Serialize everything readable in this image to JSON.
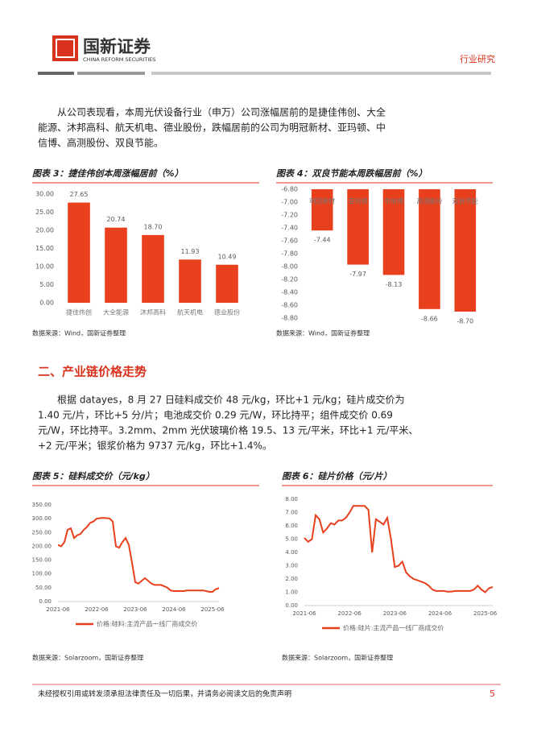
{
  "header": {
    "logo_text": "国新证券",
    "logo_subtext": "CHINA REFORM SECURITIES",
    "report_type": "行业研究"
  },
  "paragraphs": [
    [
      "从公司表现看，本周光伏设备行业（申万）公司涨幅居前的是捷佳伟创、大全",
      "能源、沐邦高科、航天机电、德业股份，跌幅居前的公司为明冠新材、亚玛顿、中",
      "信博、高测股份、双良节能。"
    ],
    [
      "根据 datayes，8 月 27 日硅料成交价 48 元/kg，环比+1 元/kg；硅片成交价为",
      "1.40 元/片，环比+5 分/片；电池成交价 0.29 元/W，环比持平；组件成交价 0.69",
      "元/W，环比持平。3.2mm、2mm 光伏玻璃价格 19.5、13 元/平米，环比+1 元/平米、",
      "+2 元/平米；银浆价格为 9737 元/kg，环比+1.4%。"
    ]
  ],
  "section_heading": "二、产业链价格走势",
  "chart_data": [
    {
      "type": "bar",
      "title": "图表 3：捷佳伟创本周涨幅居前（%）",
      "source": "数据来源：Wind，国新证券整理",
      "categories": [
        "捷佳伟创",
        "大全能源",
        "沐邦高科",
        "航天机电",
        "德业股份"
      ],
      "values": [
        27.65,
        20.74,
        18.7,
        11.93,
        10.49
      ],
      "value_labels": [
        "27.65",
        "20.74",
        "18.70",
        "11.93",
        "10.49"
      ],
      "color": "#e8401c",
      "ylim": [
        0,
        30
      ],
      "yticks": [
        {
          "value": 0,
          "label": "0.00"
        },
        {
          "value": 5,
          "label": "5.00"
        },
        {
          "value": 10,
          "label": "10.00"
        },
        {
          "value": 15,
          "label": "15.00"
        },
        {
          "value": 20,
          "label": "20.00"
        },
        {
          "value": 25,
          "label": "25.00"
        },
        {
          "value": 30,
          "label": "30.00"
        }
      ]
    },
    {
      "type": "bar",
      "title": "图表 4：双良节能本周跌幅居前（%）",
      "source": "数据来源：Wind，国新证券整理",
      "categories": [
        "明冠新材",
        "亚玛顿",
        "中信博",
        "高测股份",
        "双良节能"
      ],
      "values": [
        -7.44,
        -7.97,
        -8.13,
        -8.66,
        -8.7
      ],
      "value_labels": [
        "-7.44",
        "-7.97",
        "-8.13",
        "-8.66",
        "-8.70"
      ],
      "color": "#e8401c",
      "ylim": [
        -8.8,
        -6.8
      ],
      "yticks": [
        {
          "value": -6.8,
          "label": "-6.80"
        },
        {
          "value": -7,
          "label": "-7.00"
        },
        {
          "value": -7.2,
          "label": "-7.20"
        },
        {
          "value": -7.4,
          "label": "-7.40"
        },
        {
          "value": -7.6,
          "label": "-7.60"
        },
        {
          "value": -7.8,
          "label": "-7.80"
        },
        {
          "value": -8,
          "label": "-8.00"
        },
        {
          "value": -8.2,
          "label": "-8.20"
        },
        {
          "value": -8.4,
          "label": "-8.40"
        },
        {
          "value": -8.6,
          "label": "-8.60"
        },
        {
          "value": -8.8,
          "label": "-8.80"
        }
      ]
    },
    {
      "type": "line",
      "title": "图表 5：硅料成交价（元/kg）",
      "source": "数据来源：Solarzoom，国新证券整理",
      "x": [
        "2021-06",
        "2021-07",
        "2021-08",
        "2021-09",
        "2021-10",
        "2021-11",
        "2021-12",
        "2022-01",
        "2022-02",
        "2022-03",
        "2022-04",
        "2022-05",
        "2022-06",
        "2022-07",
        "2022-08",
        "2022-09",
        "2022-10",
        "2022-11",
        "2022-12",
        "2023-01",
        "2023-02",
        "2023-03",
        "2023-04",
        "2023-05",
        "2023-06",
        "2023-07",
        "2023-08",
        "2023-09",
        "2023-10",
        "2023-11",
        "2023-12",
        "2024-01",
        "2024-02",
        "2024-03",
        "2024-04",
        "2024-05",
        "2024-06",
        "2024-07",
        "2024-08",
        "2024-09",
        "2024-10",
        "2024-11",
        "2024-12",
        "2025-01",
        "2025-02",
        "2025-03",
        "2025-04",
        "2025-05",
        "2025-06",
        "2025-07",
        "2025-08"
      ],
      "series": [
        {
          "name": "价格:硅料:主流产品一线厂商成交价",
          "color": "#e8401c",
          "values": [
            205,
            200,
            215,
            260,
            265,
            230,
            240,
            245,
            260,
            270,
            285,
            290,
            300,
            302,
            303,
            302,
            301,
            290,
            200,
            195,
            215,
            230,
            205,
            140,
            70,
            65,
            75,
            85,
            75,
            65,
            60,
            60,
            60,
            55,
            50,
            40,
            38,
            38,
            38,
            38,
            40,
            40,
            40,
            40,
            40,
            40,
            38,
            35,
            35,
            45,
            48
          ]
        }
      ],
      "ylim": [
        0,
        350
      ],
      "yticks": [
        {
          "value": 0,
          "label": "0.00"
        },
        {
          "value": 50,
          "label": "50.00"
        },
        {
          "value": 100,
          "label": "100.00"
        },
        {
          "value": 150,
          "label": "150.00"
        },
        {
          "value": 200,
          "label": "200.00"
        },
        {
          "value": 250,
          "label": "250.00"
        },
        {
          "value": 300,
          "label": "300.00"
        },
        {
          "value": 350,
          "label": "350.00"
        }
      ],
      "xticks": [
        "2021-06",
        "2022-06",
        "2023-06",
        "2024-06",
        "2025-06"
      ]
    },
    {
      "type": "line",
      "title": "图表 6：硅片价格（元/片）",
      "source": "数据来源：Solarzoom，国新证券整理",
      "x": [
        "2021-06",
        "2021-07",
        "2021-08",
        "2021-09",
        "2021-10",
        "2021-11",
        "2021-12",
        "2022-01",
        "2022-02",
        "2022-03",
        "2022-04",
        "2022-05",
        "2022-06",
        "2022-07",
        "2022-08",
        "2022-09",
        "2022-10",
        "2022-11",
        "2022-12",
        "2023-01",
        "2023-02",
        "2023-03",
        "2023-04",
        "2023-05",
        "2023-06",
        "2023-07",
        "2023-08",
        "2023-09",
        "2023-10",
        "2023-11",
        "2023-12",
        "2024-01",
        "2024-02",
        "2024-03",
        "2024-04",
        "2024-05",
        "2024-06",
        "2024-07",
        "2024-08",
        "2024-09",
        "2024-10",
        "2024-11",
        "2024-12",
        "2025-01",
        "2025-02",
        "2025-03",
        "2025-04",
        "2025-05",
        "2025-06",
        "2025-07",
        "2025-08"
      ],
      "series": [
        {
          "name": "价格:硅片:主流产品一线厂商成交价",
          "color": "#e8401c",
          "values": [
            5.1,
            4.8,
            5.0,
            6.8,
            6.5,
            5.5,
            5.8,
            6.2,
            6.1,
            6.4,
            6.4,
            6.6,
            7.0,
            7.5,
            7.5,
            7.5,
            7.5,
            7.2,
            4.0,
            6.5,
            6.3,
            6.1,
            6.6,
            5.0,
            2.9,
            3.0,
            3.3,
            2.5,
            2.2,
            2.0,
            1.9,
            1.8,
            1.7,
            1.5,
            1.2,
            1.1,
            1.1,
            1.1,
            1.05,
            1.05,
            1.1,
            1.1,
            1.1,
            1.1,
            1.1,
            1.2,
            1.5,
            1.2,
            1.0,
            1.3,
            1.4
          ]
        }
      ],
      "ylim": [
        0,
        8
      ],
      "yticks": [
        {
          "value": 0,
          "label": "0.00"
        },
        {
          "value": 1,
          "label": "1.00"
        },
        {
          "value": 2,
          "label": "2.00"
        },
        {
          "value": 3,
          "label": "3.00"
        },
        {
          "value": 4,
          "label": "4.00"
        },
        {
          "value": 5,
          "label": "5.00"
        },
        {
          "value": 6,
          "label": "6.00"
        },
        {
          "value": 7,
          "label": "7.00"
        },
        {
          "value": 8,
          "label": "8.00"
        }
      ],
      "xticks": [
        "2021-06",
        "2022-06",
        "2023-06",
        "2024-06",
        "2025-06"
      ]
    }
  ],
  "footer": {
    "disclaimer": "未经授权引用或转发须承担法律责任及一切后果，并请务必阅读文后的免责声明",
    "page_number": 5
  }
}
